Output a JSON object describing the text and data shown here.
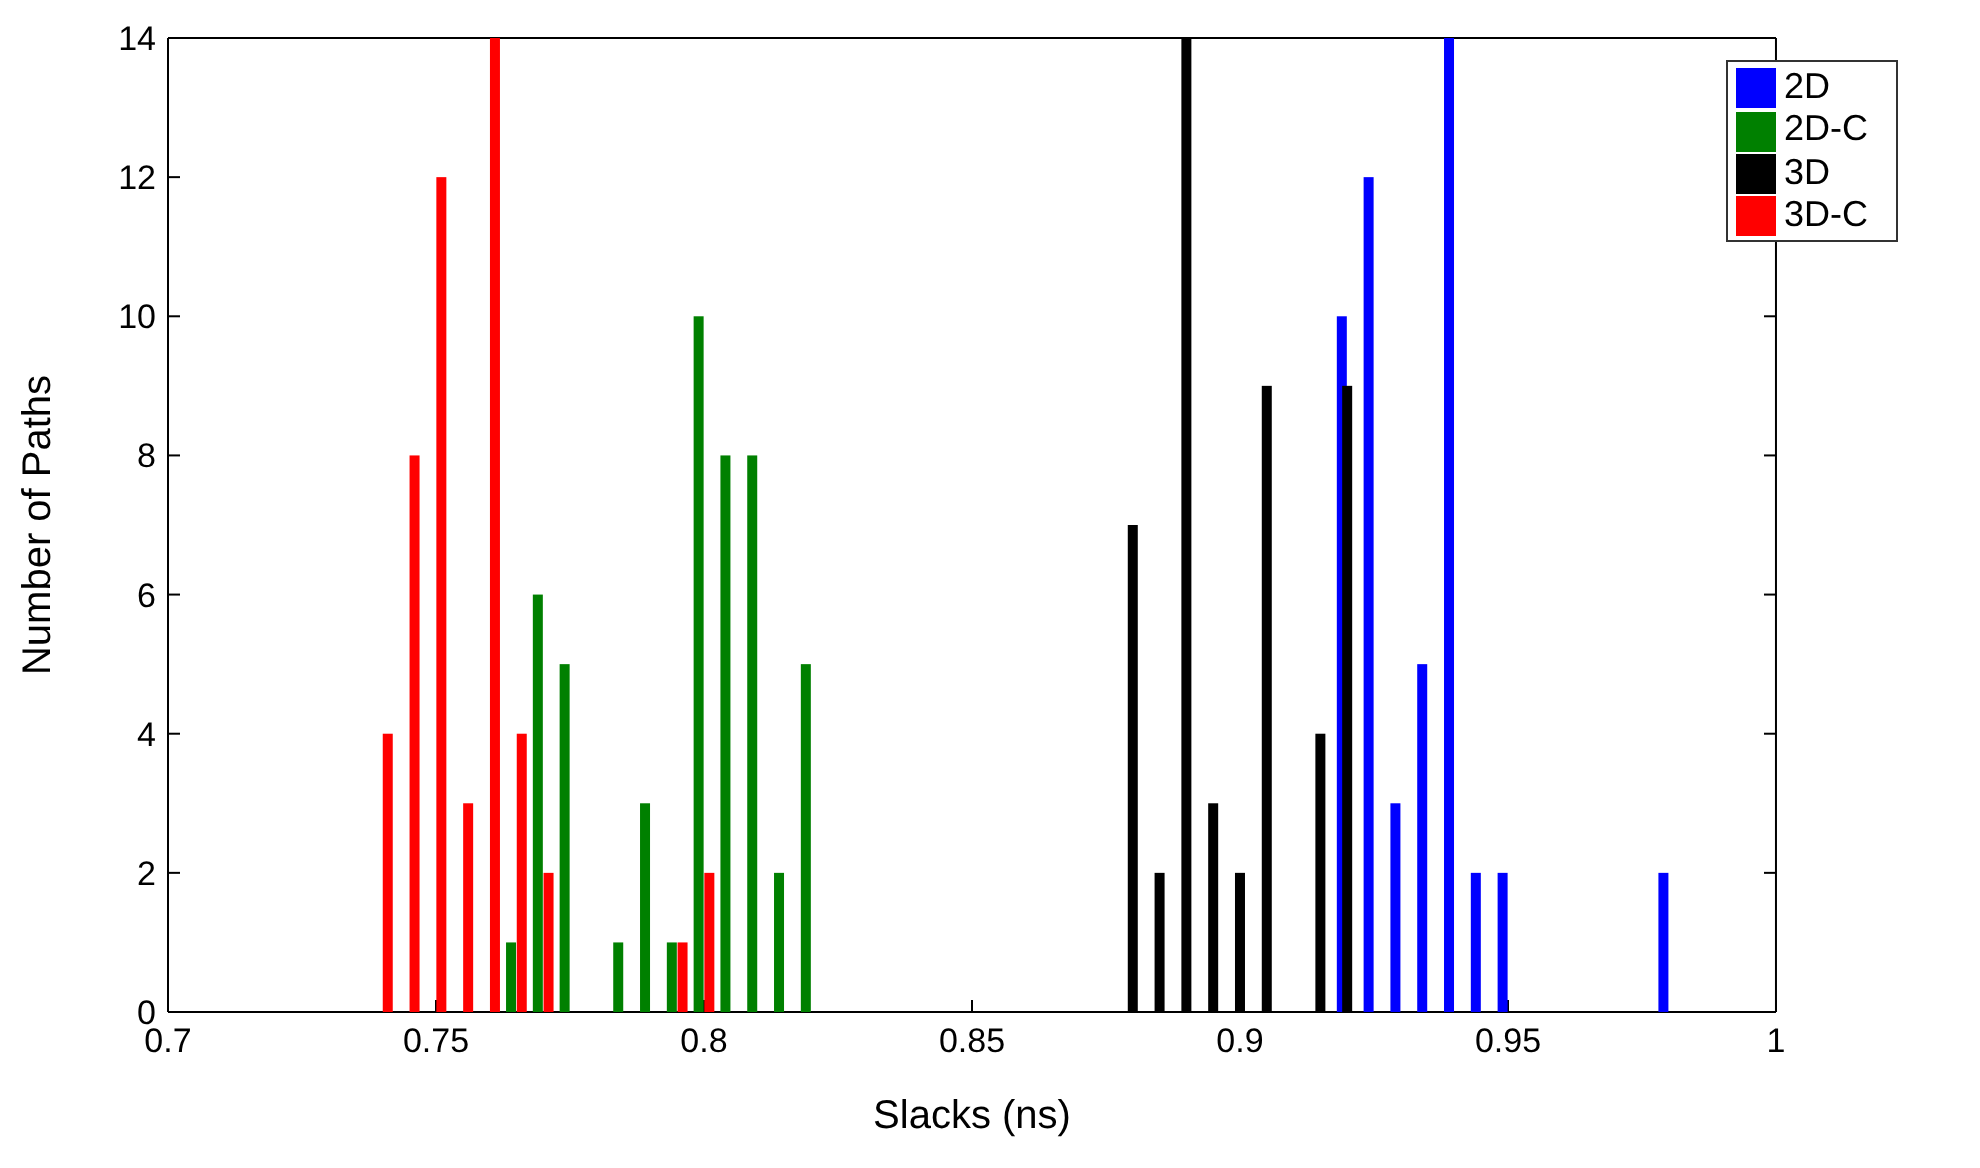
{
  "chart_data": {
    "type": "bar",
    "xlabel": "Slacks (ns)",
    "ylabel": "Number of Paths",
    "xlim": [
      0.7,
      1
    ],
    "xticks": [
      {
        "value": 0.7,
        "label": "0.7"
      },
      {
        "value": 0.75,
        "label": "0.75"
      },
      {
        "value": 0.8,
        "label": "0.8"
      },
      {
        "value": 0.85,
        "label": "0.85"
      },
      {
        "value": 0.9,
        "label": "0.9"
      },
      {
        "value": 0.95,
        "label": "0.95"
      },
      {
        "value": 1,
        "label": "1"
      }
    ],
    "ylim": [
      0,
      14
    ],
    "yticks": [
      0,
      2,
      4,
      6,
      8,
      10,
      12,
      14
    ],
    "legend": "top right",
    "series": [
      {
        "name": "2D",
        "color": "#0000ff",
        "x": [
          0.919,
          0.924,
          0.929,
          0.934,
          0.939,
          0.944,
          0.949,
          0.979
        ],
        "values": [
          10,
          12,
          3,
          5,
          14,
          2,
          2,
          2
        ]
      },
      {
        "name": "2D-C",
        "color": "#008000",
        "x": [
          0.764,
          0.769,
          0.774,
          0.784,
          0.789,
          0.794,
          0.799,
          0.804,
          0.809,
          0.814,
          0.819
        ],
        "values": [
          1,
          6,
          5,
          1,
          3,
          1,
          10,
          8,
          8,
          2,
          5
        ]
      },
      {
        "name": "3D",
        "color": "#000000",
        "x": [
          0.88,
          0.885,
          0.89,
          0.895,
          0.9,
          0.905,
          0.915,
          0.92
        ],
        "values": [
          7,
          2,
          14,
          3,
          2,
          9,
          4,
          9
        ]
      },
      {
        "name": "3D-C",
        "color": "#ff0000",
        "x": [
          0.741,
          0.746,
          0.751,
          0.756,
          0.761,
          0.766,
          0.771,
          0.796,
          0.801
        ],
        "values": [
          4,
          8,
          12,
          3,
          14,
          4,
          2,
          1,
          2
        ]
      }
    ]
  }
}
